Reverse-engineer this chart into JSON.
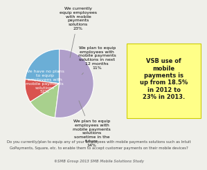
{
  "slices": [
    23,
    11,
    14,
    52
  ],
  "colors": [
    "#6baed6",
    "#d9534f",
    "#a8d08d",
    "#b09fca"
  ],
  "startangle": 90,
  "label0": "We currently\nequip employees\nwith mobile\npayments\nsolutions\n23%",
  "label1": "We plan to equip\nemployees with\nmobile payments\nsolutions in next\n12 months\n11%",
  "label2": "We plan to equip\nemployees with\nmobile payments\nsolutions\nsometime in the\nfuture\n14%",
  "label3": "We have no plans\nto equip\nemployees with\nmobile payments\nsolutions\n52%",
  "callout_text": "VSB use of\nmobile\npayments is\nup from 18.5%\nin 2012 to\n23% in 2013.",
  "callout_bg": "#ffff88",
  "question_line1": "Do you currently/plan to equip any of your employees with mobile payments solutions such as Intuit",
  "question_line2": "GoPayments, Square, etc. to enable them to accept customer payments on their mobile devices?",
  "footer_text": "©SMB Group 2013 SMB Mobile Solutions Study",
  "bg_color": "#efefea",
  "label_fontsize": 4.5,
  "callout_fontsize": 6.0,
  "question_fontsize": 3.8,
  "footer_fontsize": 3.5
}
